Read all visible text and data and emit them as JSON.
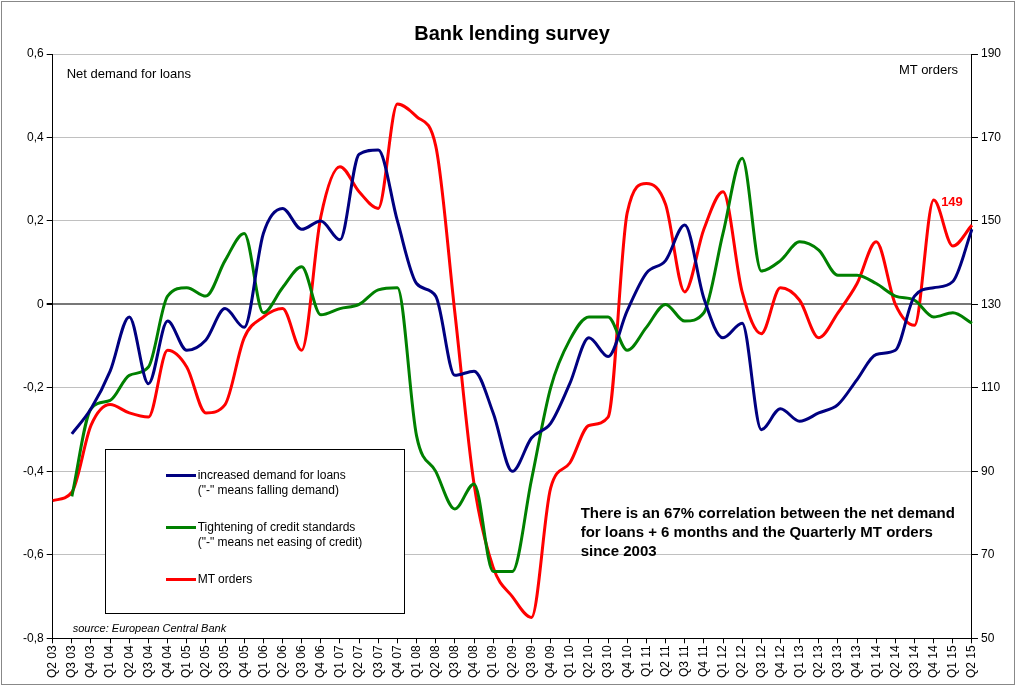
{
  "chart_data": {
    "type": "line",
    "title": "Bank lending survey",
    "ylabel": "Net demand for loans",
    "y2label": "MT orders",
    "categories": [
      "Q2 03",
      "Q3 03",
      "Q4 03",
      "Q1 04",
      "Q2 04",
      "Q3 04",
      "Q4 04",
      "Q1 05",
      "Q2 05",
      "Q3 05",
      "Q4 05",
      "Q1 06",
      "Q2 06",
      "Q3 06",
      "Q4 06",
      "Q1 07",
      "Q2 07",
      "Q3 07",
      "Q4 07",
      "Q1 08",
      "Q2 08",
      "Q3 08",
      "Q4 08",
      "Q1 09",
      "Q2 09",
      "Q3 09",
      "Q4 09",
      "Q1 10",
      "Q2 10",
      "Q3 10",
      "Q4 10",
      "Q1 11",
      "Q2 11",
      "Q3 11",
      "Q4 11",
      "Q1 12",
      "Q2 12",
      "Q3 12",
      "Q4 12",
      "Q1 13",
      "Q2 13",
      "Q3 13",
      "Q4 13",
      "Q1 14",
      "Q2 14",
      "Q3 14",
      "Q4 14",
      "Q1 15",
      "Q2 15"
    ],
    "series": [
      {
        "name": "increased demand for loans\n(\"-\" means falling demand)",
        "color": "#000080",
        "values": [
          null,
          -0.31,
          -0.25,
          -0.16,
          -0.03,
          -0.19,
          -0.04,
          -0.11,
          -0.085,
          -0.01,
          -0.055,
          0.17,
          0.23,
          0.18,
          0.2,
          0.155,
          0.36,
          0.37,
          0.2,
          0.05,
          0.02,
          -0.17,
          -0.16,
          -0.26,
          -0.4,
          -0.32,
          -0.285,
          -0.19,
          -0.08,
          -0.125,
          -0.015,
          0.075,
          0.105,
          0.19,
          0.015,
          -0.08,
          -0.045,
          -0.3,
          -0.25,
          -0.28,
          -0.26,
          -0.24,
          -0.18,
          -0.12,
          -0.11,
          0.02,
          0.04,
          0.055,
          0.18
        ]
      },
      {
        "name": "Tightening of credit standards\n(\"-\" means net easing of credit)",
        "color": "#008000",
        "values": [
          null,
          -0.46,
          -0.25,
          -0.23,
          -0.17,
          -0.15,
          0.02,
          0.04,
          0.02,
          0.105,
          0.17,
          -0.02,
          0.04,
          0.09,
          -0.025,
          -0.01,
          0,
          0.035,
          0.04,
          -0.315,
          -0.4,
          -0.49,
          -0.43,
          -0.64,
          -0.64,
          -0.42,
          -0.2,
          -0.085,
          -0.03,
          -0.03,
          -0.11,
          -0.055,
          0,
          -0.04,
          -0.02,
          0.17,
          0.35,
          0.08,
          0.105,
          0.15,
          0.13,
          0.07,
          0.07,
          0.05,
          0.02,
          0.01,
          -0.03,
          -0.02,
          -0.045
        ]
      },
      {
        "name": "MT orders",
        "color": "#ff0000",
        "axis": "y2",
        "values": [
          83,
          85,
          101,
          106,
          104,
          103,
          119,
          115,
          104,
          106,
          122,
          127,
          129,
          119,
          151,
          163,
          157,
          153,
          178,
          175,
          168,
          128,
          87,
          67,
          60,
          55,
          86,
          92,
          101,
          103,
          152,
          159,
          154,
          133,
          148,
          157,
          133,
          123,
          134,
          131,
          122,
          128,
          135,
          145,
          130,
          125,
          155,
          144,
          149
        ],
        "value_labels": [
          null,
          null,
          null,
          null,
          null,
          null,
          null,
          null,
          null,
          null,
          null,
          null,
          null,
          null,
          null,
          null,
          null,
          null,
          null,
          null,
          null,
          null,
          null,
          null,
          null,
          null,
          null,
          null,
          null,
          null,
          null,
          null,
          null,
          null,
          null,
          null,
          null,
          null,
          null,
          null,
          null,
          null,
          null,
          null,
          null,
          null,
          null,
          null,
          "149"
        ]
      }
    ],
    "ylim": [
      -0.8,
      0.6
    ],
    "yticks": [
      {
        "value": -0.8,
        "label": "-0,8"
      },
      {
        "value": -0.6,
        "label": "-0,6"
      },
      {
        "value": -0.4,
        "label": "-0,4"
      },
      {
        "value": -0.2,
        "label": "-0,2"
      },
      0,
      {
        "value": 0.2,
        "label": "0,2"
      },
      {
        "value": 0.4,
        "label": "0,4"
      },
      {
        "value": 0.6,
        "label": "0,6"
      }
    ],
    "y2lim": [
      50,
      190
    ],
    "y2ticks": [
      50,
      70,
      90,
      110,
      130,
      150,
      170,
      190
    ],
    "grid": "y",
    "legend": "bottom left",
    "annotations": [
      "source: European Central Bank",
      "There is an 67% correlation between the net demand for loans + 6 months and the Quarterly MT orders since 2003"
    ]
  }
}
